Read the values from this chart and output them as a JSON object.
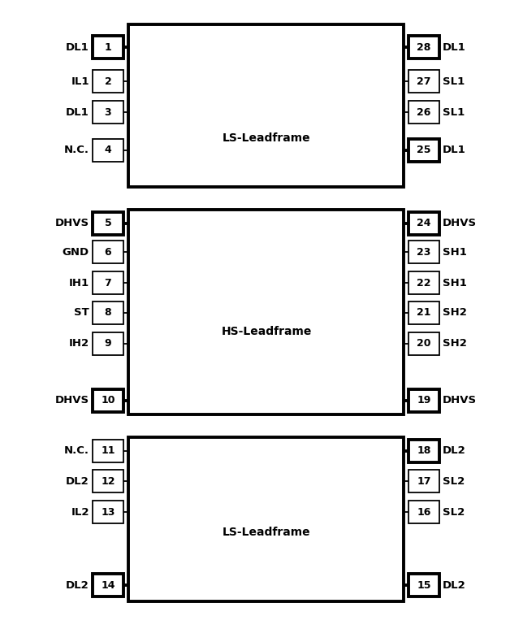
{
  "fig_width": 6.44,
  "fig_height": 7.74,
  "bg_color": "#ffffff",
  "bold_lw": 2.8,
  "thin_lw": 1.3,
  "left_pins": [
    {
      "num": "1",
      "label": "DL1",
      "bold": true,
      "group": 1
    },
    {
      "num": "2",
      "label": "IL1",
      "bold": false,
      "group": 1
    },
    {
      "num": "3",
      "label": "DL1",
      "bold": false,
      "group": 1
    },
    {
      "num": "4",
      "label": "N.C.",
      "bold": false,
      "group": 1
    },
    {
      "num": "5",
      "label": "DHVS",
      "bold": true,
      "group": 2
    },
    {
      "num": "6",
      "label": "GND",
      "bold": false,
      "group": 2
    },
    {
      "num": "7",
      "label": "IH1",
      "bold": false,
      "group": 2
    },
    {
      "num": "8",
      "label": "ST",
      "bold": false,
      "group": 2
    },
    {
      "num": "9",
      "label": "IH2",
      "bold": false,
      "group": 2
    },
    {
      "num": "10",
      "label": "DHVS",
      "bold": true,
      "group": 2
    },
    {
      "num": "11",
      "label": "N.C.",
      "bold": false,
      "group": 3
    },
    {
      "num": "12",
      "label": "DL2",
      "bold": false,
      "group": 3
    },
    {
      "num": "13",
      "label": "IL2",
      "bold": false,
      "group": 3
    },
    {
      "num": "14",
      "label": "DL2",
      "bold": true,
      "group": 3
    }
  ],
  "right_pins": [
    {
      "num": "28",
      "label": "DL1",
      "bold": true,
      "group": 1
    },
    {
      "num": "27",
      "label": "SL1",
      "bold": false,
      "group": 1
    },
    {
      "num": "26",
      "label": "SL1",
      "bold": false,
      "group": 1
    },
    {
      "num": "25",
      "label": "DL1",
      "bold": true,
      "group": 1
    },
    {
      "num": "24",
      "label": "DHVS",
      "bold": true,
      "group": 2
    },
    {
      "num": "23",
      "label": "SH1",
      "bold": false,
      "group": 2
    },
    {
      "num": "22",
      "label": "SH1",
      "bold": false,
      "group": 2
    },
    {
      "num": "21",
      "label": "SH2",
      "bold": false,
      "group": 2
    },
    {
      "num": "20",
      "label": "SH2",
      "bold": false,
      "group": 2
    },
    {
      "num": "19",
      "label": "DHVS",
      "bold": true,
      "group": 2
    },
    {
      "num": "18",
      "label": "DL2",
      "bold": true,
      "group": 3
    },
    {
      "num": "17",
      "label": "SL2",
      "bold": false,
      "group": 3
    },
    {
      "num": "16",
      "label": "SL2",
      "bold": false,
      "group": 3
    },
    {
      "num": "15",
      "label": "DL2",
      "bold": true,
      "group": 3
    }
  ]
}
